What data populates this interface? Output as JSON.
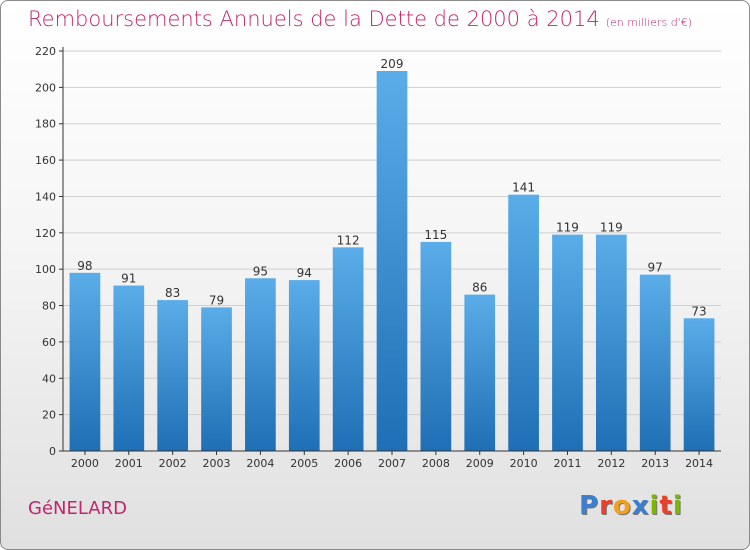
{
  "title": "Remboursements Annuels de la Dette de 2000 à 2014",
  "unit_note": "(en milliers d'€)",
  "commune": "GéNELARD",
  "logo": {
    "text": "Proxiti",
    "letters": [
      "P",
      "r",
      "o",
      "x",
      "i",
      "t",
      "i"
    ],
    "colors": [
      "#3a7fd0",
      "#e8402a",
      "#f0a020",
      "#3a7fd0",
      "#7ab800",
      "#e8402a",
      "#7ab800"
    ]
  },
  "colors": {
    "accent": "#c0266e",
    "bar_top": "#5aade8",
    "bar_bottom": "#1e6fb5",
    "grid": "#cfcfcf"
  },
  "chart_data": {
    "type": "bar",
    "title": "Remboursements Annuels de la Dette de 2000 à 2014",
    "xlabel": "",
    "ylabel": "en milliers d'€",
    "categories": [
      "2000",
      "2001",
      "2002",
      "2003",
      "2004",
      "2005",
      "2006",
      "2007",
      "2008",
      "2009",
      "2010",
      "2011",
      "2012",
      "2013",
      "2014"
    ],
    "values": [
      98,
      91,
      83,
      79,
      95,
      94,
      112,
      209,
      115,
      86,
      141,
      119,
      119,
      97,
      73
    ],
    "ylim": [
      0,
      220
    ],
    "yticks": [
      0,
      20,
      40,
      60,
      80,
      100,
      120,
      140,
      160,
      180,
      200,
      220
    ],
    "grid": true,
    "data_labels": true
  }
}
